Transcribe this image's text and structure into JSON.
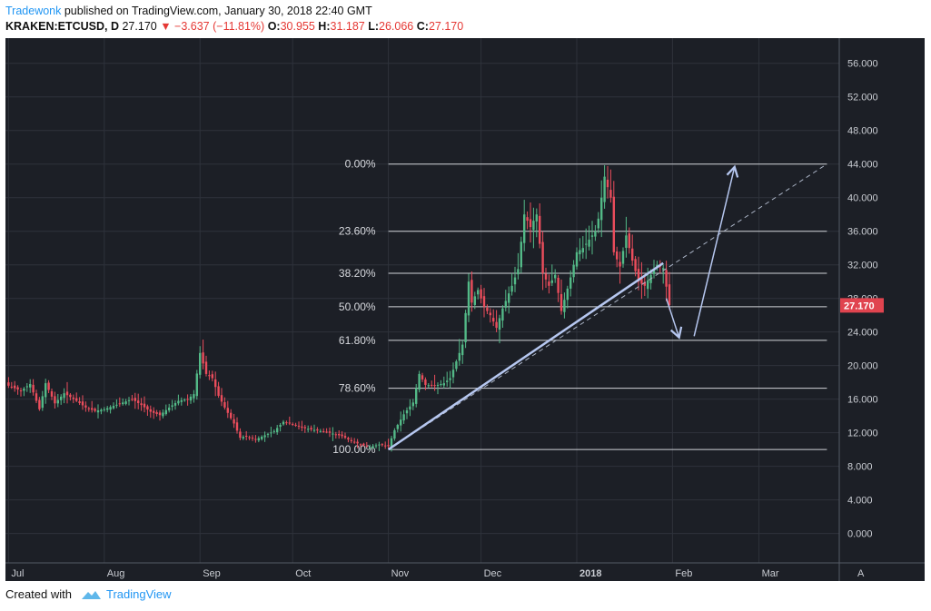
{
  "header": {
    "author": "Tradewonk",
    "published_text": "published on TradingView.com, January 30, 2018 22:40 GMT",
    "symbol": "KRAKEN:ETCUSD, D",
    "last": "27.170",
    "change": "▼ −3.637 (−11.81%)",
    "open_label": "O:",
    "open": "30.955",
    "high_label": "H:",
    "high": "31.187",
    "low_label": "L:",
    "low": "26.066",
    "close_label": "C:",
    "close": "27.170"
  },
  "footer": {
    "created_with": "Created with",
    "brand": "TradingView"
  },
  "colors": {
    "background": "#1c1f26",
    "grid": "#2e323b",
    "up": "#53b987",
    "down": "#eb4d5c",
    "annotation": "#b6c7f0",
    "fib": "#d0d3d8",
    "price_badge": "#e0444f"
  },
  "chart_data": {
    "type": "candlestick",
    "title": "KRAKEN:ETCUSD, D",
    "ylim": [
      -3.5,
      59
    ],
    "y_ticks": [
      "56.000",
      "52.000",
      "48.000",
      "44.000",
      "40.000",
      "36.000",
      "32.000",
      "28.000",
      "24.000",
      "20.000",
      "16.000",
      "12.000",
      "8.000",
      "4.000",
      "0.000"
    ],
    "last_price_label": "27.170",
    "x_range_days": [
      -1,
      179
    ],
    "x_ticks": [
      {
        "label": "Jul",
        "day": 0
      },
      {
        "label": "Aug",
        "day": 31
      },
      {
        "label": "Sep",
        "day": 62
      },
      {
        "label": "Oct",
        "day": 92
      },
      {
        "label": "Nov",
        "day": 123
      },
      {
        "label": "Dec",
        "day": 153
      },
      {
        "label": "2018",
        "day": 184
      },
      {
        "label": "Feb",
        "day": 215
      },
      {
        "label": "Mar",
        "day": 243
      },
      {
        "label": "A",
        "day": 274
      }
    ],
    "fib_levels": [
      {
        "label": "0.00%",
        "value": 44.0
      },
      {
        "label": "23.60%",
        "value": 36.0
      },
      {
        "label": "38.20%",
        "value": 31.0
      },
      {
        "label": "50.00%",
        "value": 27.0
      },
      {
        "label": "61.80%",
        "value": 23.0
      },
      {
        "label": "78.60%",
        "value": 17.3
      },
      {
        "label": "100.00%",
        "value": 10.0
      }
    ],
    "fib_range_days": [
      123,
      265
    ],
    "trendline": {
      "from": [
        123,
        10.0
      ],
      "to": [
        212,
        32.2
      ]
    },
    "trend_extension": {
      "from": [
        123,
        10.0
      ],
      "to": [
        265,
        44.0
      ]
    },
    "arrows": [
      {
        "from": [
          213,
          28.0
        ],
        "to": [
          217,
          23.5
        ]
      },
      {
        "from": [
          222,
          23.5
        ],
        "to": [
          235,
          43.5
        ]
      }
    ],
    "close_points": [
      [
        0,
        17.6
      ],
      [
        4,
        17.0
      ],
      [
        7,
        17.8
      ],
      [
        10,
        14.8
      ],
      [
        12,
        17.9
      ],
      [
        15,
        15.5
      ],
      [
        18,
        16.7
      ],
      [
        22,
        15.8
      ],
      [
        25,
        15.0
      ],
      [
        28,
        14.6
      ],
      [
        31,
        14.8
      ],
      [
        34,
        15.2
      ],
      [
        37,
        15.6
      ],
      [
        40,
        16.0
      ],
      [
        43,
        15.3
      ],
      [
        46,
        14.5
      ],
      [
        49,
        14.1
      ],
      [
        52,
        15.0
      ],
      [
        55,
        15.8
      ],
      [
        58,
        16.0
      ],
      [
        60,
        16.6
      ],
      [
        62,
        21.5
      ],
      [
        64,
        19.0
      ],
      [
        66,
        18.5
      ],
      [
        68,
        16.4
      ],
      [
        70,
        15.0
      ],
      [
        73,
        13.1
      ],
      [
        75,
        11.4
      ],
      [
        77,
        11.6
      ],
      [
        80,
        11.2
      ],
      [
        83,
        11.7
      ],
      [
        86,
        12.2
      ],
      [
        89,
        13.3
      ],
      [
        92,
        13.0
      ],
      [
        95,
        12.6
      ],
      [
        98,
        12.4
      ],
      [
        101,
        12.2
      ],
      [
        104,
        12.0
      ],
      [
        108,
        11.6
      ],
      [
        111,
        11.0
      ],
      [
        114,
        10.6
      ],
      [
        117,
        10.3
      ],
      [
        120,
        10.6
      ],
      [
        123,
        10.4
      ],
      [
        125,
        12.3
      ],
      [
        128,
        14.2
      ],
      [
        131,
        15.6
      ],
      [
        133,
        19.0
      ],
      [
        135,
        17.7
      ],
      [
        138,
        17.6
      ],
      [
        141,
        17.9
      ],
      [
        143,
        18.5
      ],
      [
        145,
        20.5
      ],
      [
        147,
        22.5
      ],
      [
        149,
        30.0
      ],
      [
        150,
        27.5
      ],
      [
        152,
        29.0
      ],
      [
        154,
        27.0
      ],
      [
        156,
        26.0
      ],
      [
        158,
        24.5
      ],
      [
        160,
        26.8
      ],
      [
        163,
        29.5
      ],
      [
        165,
        31.5
      ],
      [
        167,
        38.0
      ],
      [
        169,
        36.5
      ],
      [
        171,
        38.0
      ],
      [
        173,
        31.0
      ],
      [
        175,
        29.5
      ],
      [
        177,
        30.8
      ],
      [
        179,
        26.5
      ],
      [
        182,
        30.5
      ],
      [
        184,
        33.5
      ],
      [
        186,
        34.0
      ],
      [
        188,
        35.0
      ],
      [
        190,
        36.0
      ],
      [
        191,
        37.5
      ],
      [
        193,
        42.5
      ],
      [
        195,
        40.0
      ],
      [
        196,
        33.5
      ],
      [
        198,
        31.8
      ],
      [
        200,
        35.5
      ],
      [
        202,
        32.5
      ],
      [
        204,
        30.0
      ],
      [
        206,
        29.5
      ],
      [
        208,
        30.8
      ],
      [
        210,
        32.0
      ],
      [
        212,
        31.6
      ],
      [
        214,
        27.2
      ]
    ]
  }
}
